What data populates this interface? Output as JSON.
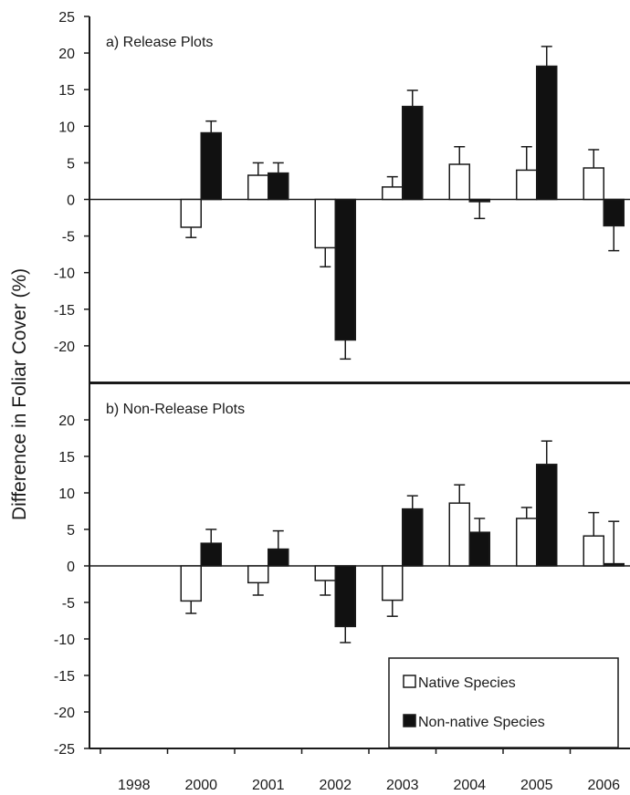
{
  "chart_data": {
    "type": "bar",
    "ylabel": "Difference in Foliar Cover (%)",
    "categories": [
      "1998",
      "2000",
      "2001",
      "2002",
      "2003",
      "2004",
      "2005",
      "2006"
    ],
    "series_style": {
      "Native Species": "#ffffff",
      "Non-native Species": "#111111"
    },
    "legend": {
      "position": "bottom-right",
      "entries": [
        "Native Species",
        "Non-native Species"
      ]
    },
    "grid": false,
    "panels": [
      {
        "title": "a) Release Plots",
        "ylim": [
          -25,
          25
        ],
        "yticks": [
          25,
          20,
          15,
          10,
          5,
          0,
          -5,
          -10,
          -15,
          -20
        ],
        "series": [
          {
            "name": "Native Species",
            "values": [
              null,
              -3.8,
              3.3,
              -6.6,
              1.7,
              4.8,
              4.0,
              4.3
            ],
            "errors": [
              null,
              1.4,
              1.7,
              2.6,
              1.4,
              2.4,
              3.2,
              2.5
            ]
          },
          {
            "name": "Non-native Species",
            "values": [
              null,
              9.1,
              3.6,
              -19.2,
              12.7,
              -0.3,
              18.2,
              -3.6
            ],
            "errors": [
              null,
              1.6,
              1.4,
              2.6,
              2.2,
              2.3,
              2.7,
              3.4
            ]
          }
        ]
      },
      {
        "title": "b) Non-Release Plots",
        "ylim": [
          -25,
          25
        ],
        "yticks": [
          20,
          15,
          10,
          5,
          0,
          -5,
          -10,
          -15,
          -20,
          -25
        ],
        "series": [
          {
            "name": "Native Species",
            "values": [
              null,
              -4.8,
              -2.3,
              -2.0,
              -4.7,
              8.6,
              6.5,
              4.1
            ],
            "errors": [
              null,
              1.7,
              1.7,
              2.0,
              2.2,
              2.5,
              1.5,
              3.2
            ]
          },
          {
            "name": "Non-native Species",
            "values": [
              null,
              3.1,
              2.3,
              -8.3,
              7.8,
              4.6,
              13.9,
              0.3
            ],
            "errors": [
              null,
              1.9,
              2.5,
              2.2,
              1.8,
              1.9,
              3.2,
              5.8
            ]
          }
        ]
      }
    ]
  }
}
